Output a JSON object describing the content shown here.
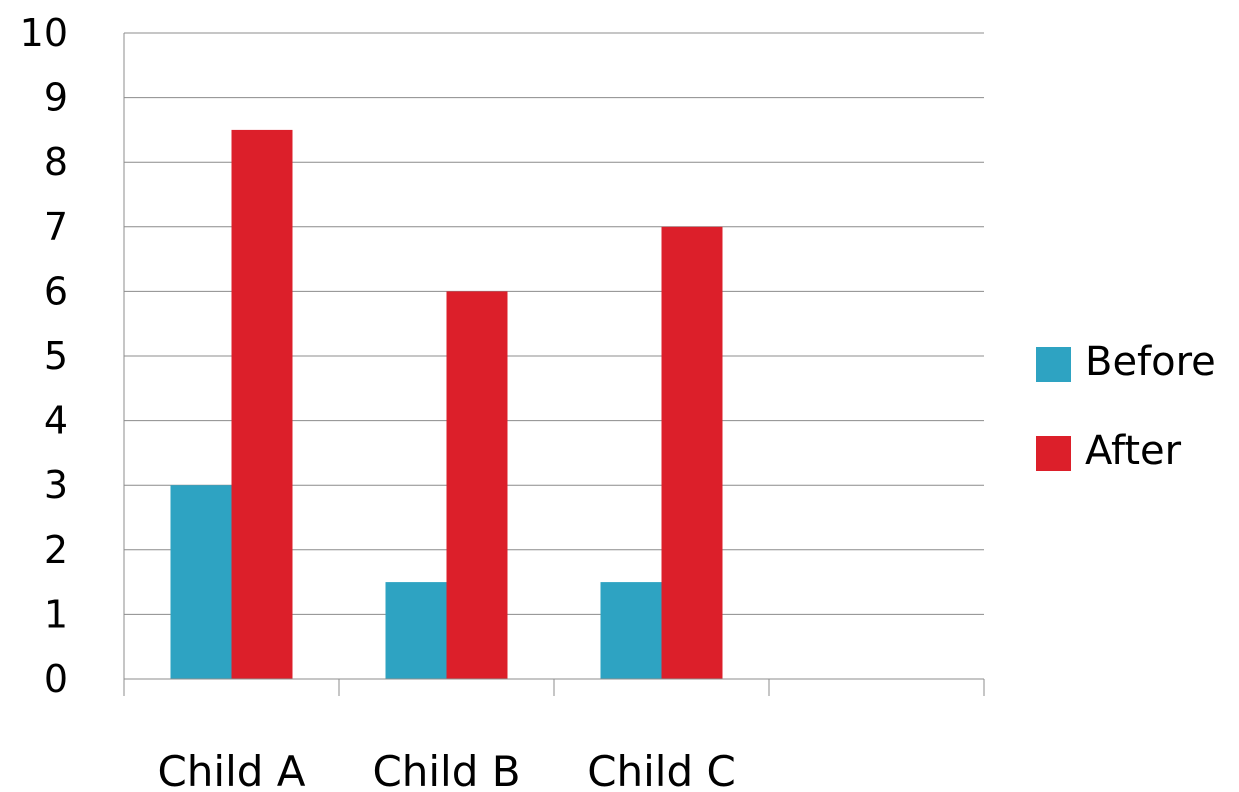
{
  "chart_data": {
    "type": "bar",
    "categories": [
      "Child A",
      "Child B",
      "Child C",
      ""
    ],
    "series": [
      {
        "name": "Before",
        "color": "#2ea3c2",
        "values": [
          3,
          1.5,
          1.5,
          null
        ]
      },
      {
        "name": "After",
        "color": "#dc1f2a",
        "values": [
          8.5,
          6,
          7,
          null
        ]
      }
    ],
    "ylim": [
      0,
      10
    ],
    "yticks": [
      "0",
      "1",
      "2",
      "3",
      "4",
      "5",
      "6",
      "7",
      "8",
      "9",
      "10"
    ],
    "grid": true,
    "legend_position": "right"
  }
}
